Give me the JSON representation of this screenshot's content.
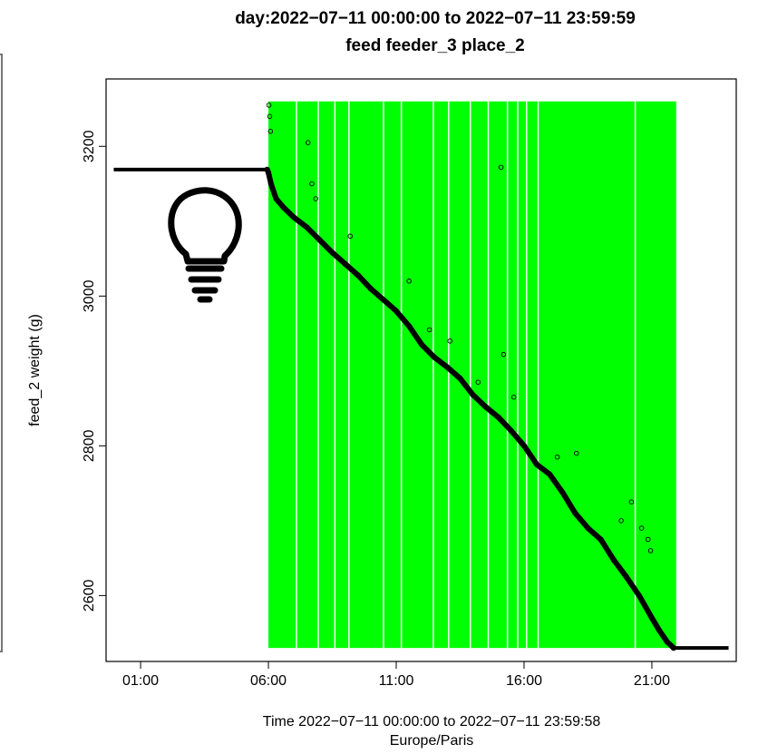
{
  "chart_data": {
    "type": "scatter",
    "title": "day:2022−07−11 00:00:00 to 2022−07−11 23:59:59",
    "subtitle": "feed feeder_3 place_2",
    "xlabel": "Time 2022−07−11 00:00:00 to 2022−07−11 23:59:58",
    "xlabel2": "Europe/Paris",
    "ylabel": "feed_2 weight (g)",
    "x_unit": "hours",
    "xlim": [
      -0.35,
      24.3
    ],
    "ylim": [
      2512,
      3290
    ],
    "x_ticks": [
      {
        "value": 1,
        "label": "01:00"
      },
      {
        "value": 6,
        "label": "06:00"
      },
      {
        "value": 11,
        "label": "11:00"
      },
      {
        "value": 16,
        "label": "16:00"
      },
      {
        "value": 21,
        "label": "21:00"
      }
    ],
    "y_ticks": [
      {
        "value": 2600,
        "label": "2600"
      },
      {
        "value": 2800,
        "label": "2800"
      },
      {
        "value": 3000,
        "label": "3000"
      },
      {
        "value": 3200,
        "label": "3200"
      }
    ],
    "grid": false,
    "legend": "none",
    "colors": {
      "activity": "#00ff00",
      "points": "#000000",
      "line": "#000000"
    },
    "activity_band": {
      "x_start": 6.0,
      "x_end": 21.95,
      "y_range": [
        2530,
        3260
      ]
    },
    "activity_gaps": [
      7.1,
      7.95,
      8.6,
      9.15,
      10.5,
      11.2,
      12.45,
      13.05,
      13.9,
      14.6,
      15.35,
      15.75,
      16.1,
      16.55,
      20.35
    ],
    "baseline_segment": {
      "x": [
        -0.05,
        5.9
      ],
      "y": [
        3169,
        3169
      ]
    },
    "tail_segment": {
      "x": [
        21.85,
        24.0
      ],
      "y": [
        2530,
        2530
      ]
    },
    "series": [
      {
        "x": [
          5.95,
          6.0,
          6.1,
          6.3,
          6.6,
          7.0,
          7.5,
          8.0,
          8.5,
          9.0,
          9.5,
          10.0,
          10.5,
          11.0,
          11.5,
          12.0,
          12.5,
          13.0,
          13.5,
          14.0,
          14.5,
          15.0,
          15.5,
          16.0,
          16.5,
          17.0,
          17.5,
          18.0,
          18.5,
          19.0,
          19.5,
          20.0,
          20.5,
          21.0,
          21.3,
          21.6,
          21.85
        ],
        "y": [
          3169,
          3165,
          3150,
          3130,
          3118,
          3105,
          3092,
          3075,
          3058,
          3043,
          3028,
          3010,
          2995,
          2980,
          2960,
          2935,
          2918,
          2905,
          2890,
          2868,
          2852,
          2838,
          2820,
          2800,
          2775,
          2762,
          2738,
          2710,
          2690,
          2675,
          2648,
          2625,
          2600,
          2570,
          2553,
          2538,
          2530
        ]
      }
    ],
    "outliers": {
      "x": [
        6.02,
        6.05,
        6.08,
        7.55,
        7.7,
        7.85,
        9.2,
        11.5,
        12.3,
        13.1,
        14.2,
        15.1,
        15.2,
        15.6,
        17.3,
        18.05,
        19.8,
        20.2,
        20.6,
        20.85,
        20.95
      ],
      "y": [
        3255,
        3240,
        3220,
        3205,
        3150,
        3130,
        3080,
        3020,
        2955,
        2940,
        2885,
        3172,
        2922,
        2865,
        2785,
        2790,
        2700,
        2725,
        2690,
        2675,
        2660
      ]
    }
  }
}
